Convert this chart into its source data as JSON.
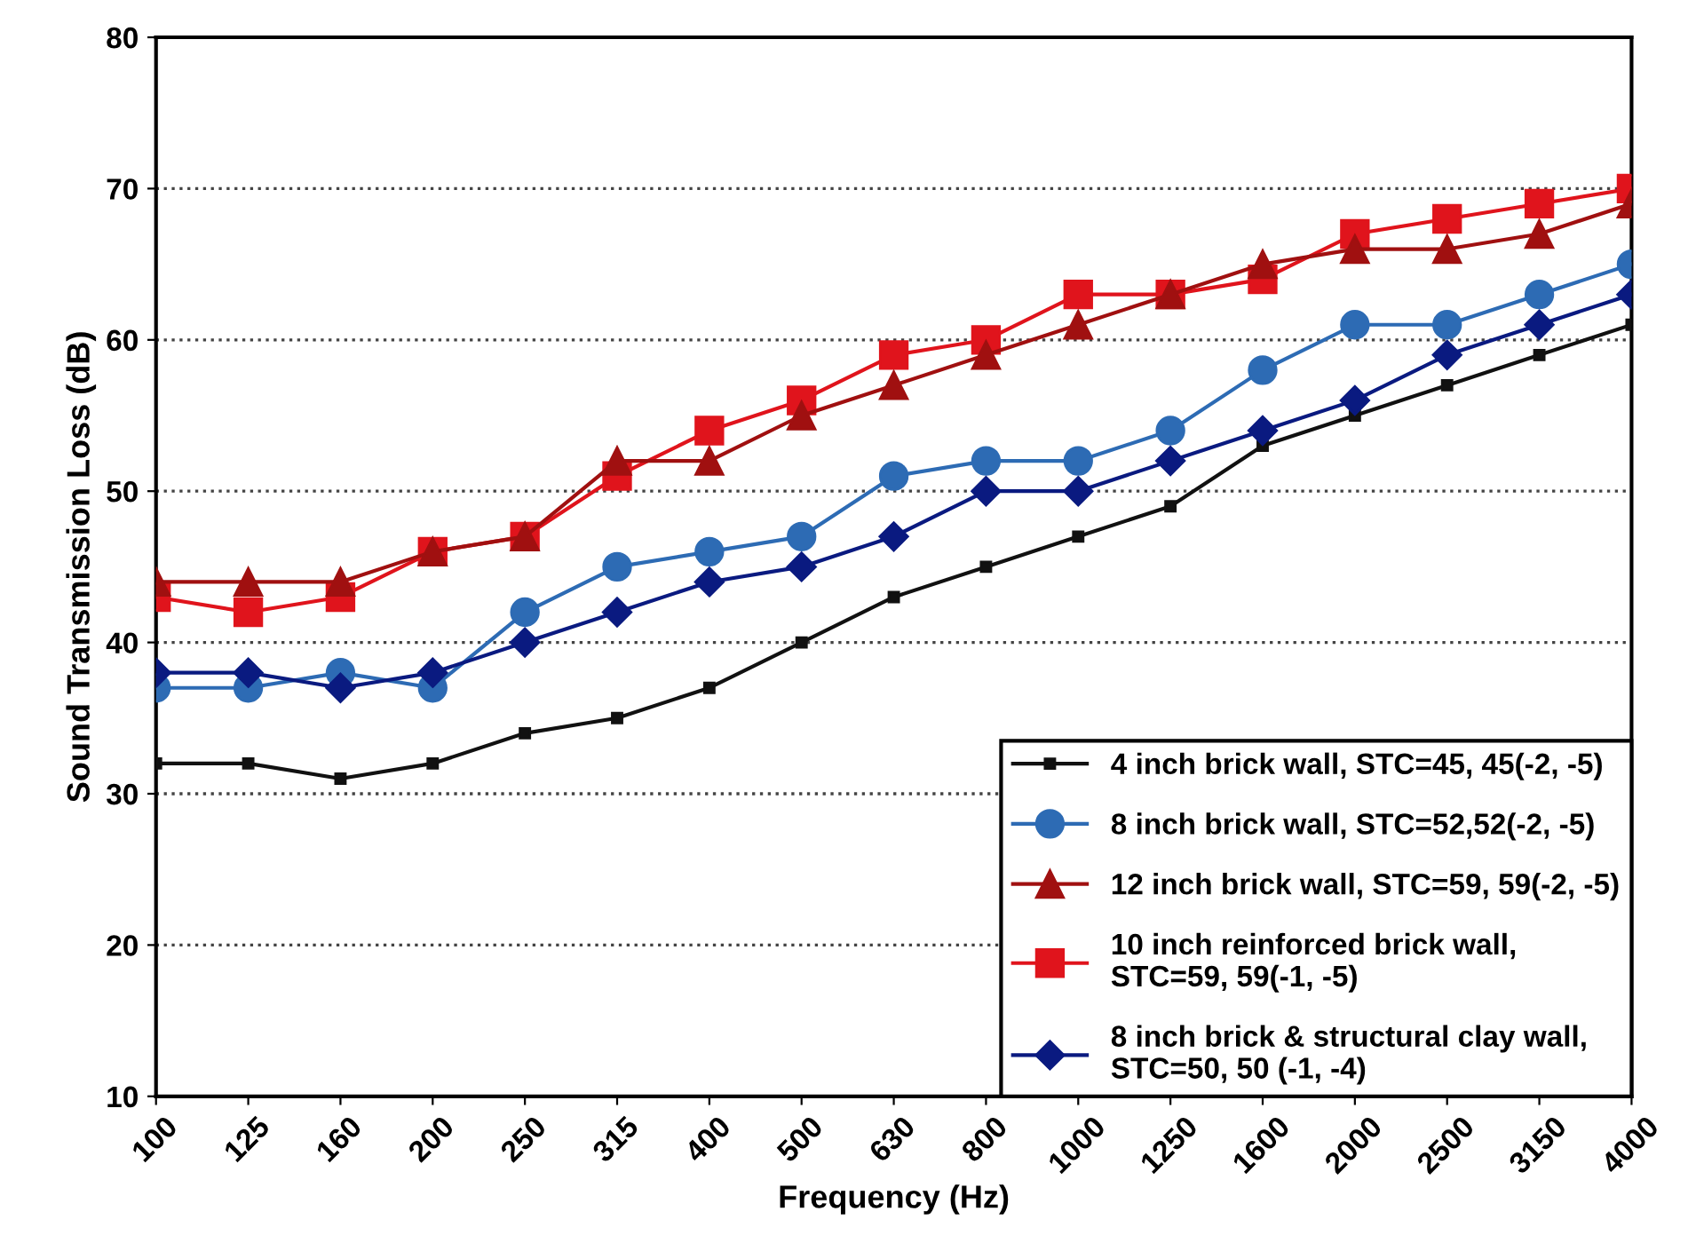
{
  "chart_data": {
    "type": "line",
    "xlabel": "Frequency (Hz)",
    "ylabel": "Sound Transmission Loss (dB)",
    "categories": [
      "100",
      "125",
      "160",
      "200",
      "250",
      "315",
      "400",
      "500",
      "630",
      "800",
      "1000",
      "1250",
      "1600",
      "2000",
      "2500",
      "3150",
      "4000"
    ],
    "ylim": [
      10,
      80
    ],
    "yticks": [
      10,
      20,
      30,
      40,
      50,
      60,
      70,
      80
    ],
    "grid": "y",
    "legend": "bottom right",
    "series": [
      {
        "name": "4 inch brick wall, STC=45, 45(-2, -5)",
        "color": "#111111",
        "marker": "square",
        "values": [
          32,
          32,
          31,
          32,
          34,
          35,
          37,
          40,
          43,
          45,
          47,
          49,
          53,
          55,
          57,
          59,
          61
        ]
      },
      {
        "name": "8 inch brick wall, STC=52,52(-2, -5)",
        "color": "#2d6bb4",
        "marker": "circle",
        "values": [
          37,
          37,
          38,
          37,
          42,
          45,
          46,
          47,
          51,
          52,
          52,
          54,
          58,
          61,
          61,
          63,
          65
        ]
      },
      {
        "name": "12 inch brick wall, STC=59, 59(-2, -5)",
        "color": "#a01010",
        "marker": "triangle",
        "values": [
          44,
          44,
          44,
          46,
          47,
          52,
          52,
          55,
          57,
          59,
          61,
          63,
          65,
          66,
          66,
          67,
          69
        ]
      },
      {
        "name": "10 inch reinforced brick wall,\nSTC=59, 59(-1, -5)",
        "color": "#e0141c",
        "marker": "square",
        "values": [
          43,
          42,
          43,
          46,
          47,
          51,
          54,
          56,
          59,
          60,
          63,
          63,
          64,
          67,
          68,
          69,
          70
        ]
      },
      {
        "name": "8 inch brick & structural clay wall,\nSTC=50, 50 (-1, -4)",
        "color": "#0a1a80",
        "marker": "diamond",
        "values": [
          38,
          38,
          37,
          38,
          40,
          42,
          44,
          45,
          47,
          50,
          50,
          52,
          54,
          56,
          59,
          61,
          63
        ]
      }
    ]
  }
}
